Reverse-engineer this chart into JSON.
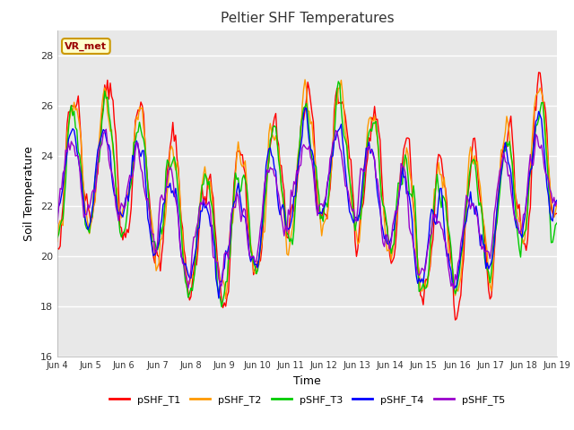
{
  "title": "Peltier SHF Temperatures",
  "xlabel": "Time",
  "ylabel": "Soil Temperature",
  "ylim": [
    16,
    29
  ],
  "yticks": [
    16,
    18,
    20,
    22,
    24,
    26,
    28
  ],
  "tick_labels": [
    "Jun 4",
    "Jun 5",
    "Jun 6",
    "Jun 7",
    "Jun 8",
    "Jun 9",
    "Jun 10",
    "Jun 11",
    "Jun 12",
    "Jun 13",
    "Jun 14",
    "Jun 15",
    "Jun 16",
    "Jun 17",
    "Jun 18",
    "Jun 19"
  ],
  "colors": {
    "T1": "#ff0000",
    "T2": "#ff9900",
    "T3": "#00cc00",
    "T4": "#0000ff",
    "T5": "#9900cc"
  },
  "legend_labels": [
    "pSHF_T1",
    "pSHF_T2",
    "pSHF_T3",
    "pSHF_T4",
    "pSHF_T5"
  ],
  "annotation_text": "VR_met",
  "bg_color": "#e8e8e8",
  "title_fontsize": 11,
  "axis_fontsize": 9,
  "tick_fontsize": 7,
  "legend_fontsize": 8,
  "seed": 42,
  "n_days": 15,
  "n_pts": 360
}
